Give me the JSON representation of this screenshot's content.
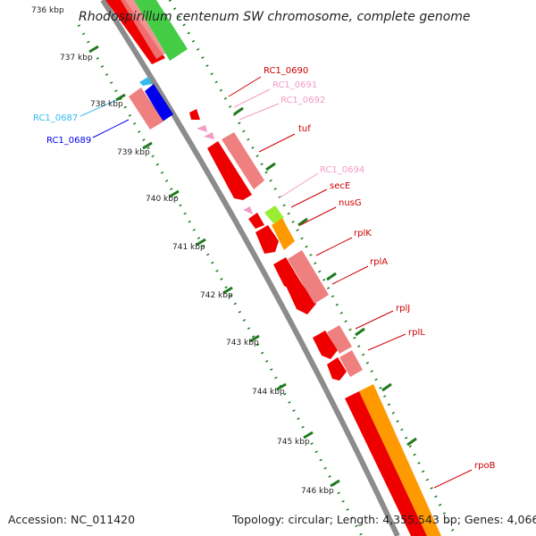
{
  "title": "Rhodospirillum centenum SW chromosome, complete genome",
  "footer": {
    "accession": "Accession: NC_011420",
    "topology": "Topology: circular; Length: 4,355,543 bp; Genes: 4,066"
  },
  "colors": {
    "backbone": "#8c8c8c",
    "tick": "#1f7a1f",
    "red": "#ee0000",
    "salmon": "#ef8080",
    "pink": "#f29bc4",
    "green": "#44cc44",
    "lime": "#99ee33",
    "orange": "#ff9900",
    "blue": "#0000ee",
    "cyan": "#33bbee",
    "darkred": "#cc0000"
  },
  "scale_labels": [
    "736 kbp",
    "737 kbp",
    "738 kbp",
    "739 kbp",
    "740 kbp",
    "741 kbp",
    "742 kbp",
    "743 kbp",
    "744 kbp",
    "745 kbp",
    "746 kbp"
  ],
  "gene_labels": [
    {
      "text": "RC1_0690",
      "color": "#cc0000"
    },
    {
      "text": "RC1_0691",
      "color": "#f29bc4"
    },
    {
      "text": "RC1_0692",
      "color": "#f29bc4"
    },
    {
      "text": "tuf",
      "color": "#cc0000"
    },
    {
      "text": "RC1_0694",
      "color": "#f29bc4"
    },
    {
      "text": "secE",
      "color": "#cc0000"
    },
    {
      "text": "nusG",
      "color": "#cc0000"
    },
    {
      "text": "rplK",
      "color": "#cc0000"
    },
    {
      "text": "rplA",
      "color": "#cc0000"
    },
    {
      "text": "rplJ",
      "color": "#cc0000"
    },
    {
      "text": "rplL",
      "color": "#cc0000"
    },
    {
      "text": "rpoB",
      "color": "#cc0000"
    },
    {
      "text": "RC1_0687",
      "color": "#33bbee"
    },
    {
      "text": "RC1_0689",
      "color": "#0000ee"
    }
  ]
}
